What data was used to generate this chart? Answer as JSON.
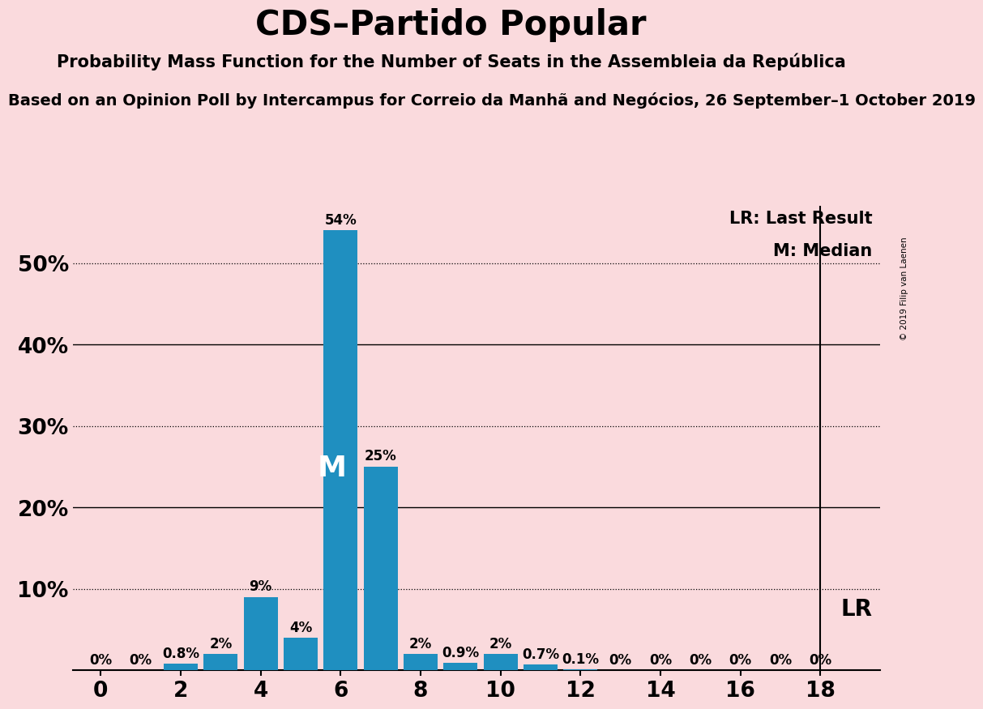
{
  "title": "CDS–Partido Popular",
  "subtitle1": "Probability Mass Function for the Number of Seats in the Assembleia da República",
  "subtitle2": "Based on an Opinion Poll by Intercampus for Correio da Manhã and Negócios, 26 September–1 October 2019",
  "copyright": "© 2019 Filip van Laenen",
  "seats": [
    0,
    1,
    2,
    3,
    4,
    5,
    6,
    7,
    8,
    9,
    10,
    11,
    12,
    13,
    14,
    15,
    16,
    17,
    18
  ],
  "probabilities": [
    0.0,
    0.0,
    0.8,
    2.0,
    9.0,
    4.0,
    54.0,
    25.0,
    2.0,
    0.9,
    2.0,
    0.7,
    0.1,
    0.0,
    0.0,
    0.0,
    0.0,
    0.0,
    0.0
  ],
  "prob_labels": [
    "0%",
    "0%",
    "0.8%",
    "2%",
    "9%",
    "4%",
    "54%",
    "25%",
    "2%",
    "0.9%",
    "2%",
    "0.7%",
    "0.1%",
    "0%",
    "0%",
    "0%",
    "0%",
    "0%",
    "0%"
  ],
  "bar_color": "#1f8fc0",
  "background_color": "#fadadd",
  "median_seat": 6,
  "lr_seat": 18,
  "legend_lr": "LR: Last Result",
  "legend_m": "M: Median",
  "ylim": [
    0,
    57
  ],
  "yticks": [
    10,
    20,
    30,
    40,
    50
  ],
  "ytick_labels": [
    "10%",
    "20%",
    "30%",
    "40%",
    "50%"
  ],
  "dotted_yticks": [
    10,
    30,
    50
  ],
  "solid_yticks": [
    20,
    40
  ],
  "xlabel_ticks": [
    0,
    2,
    4,
    6,
    8,
    10,
    12,
    14,
    16,
    18
  ],
  "xlim": [
    -0.7,
    19.5
  ]
}
